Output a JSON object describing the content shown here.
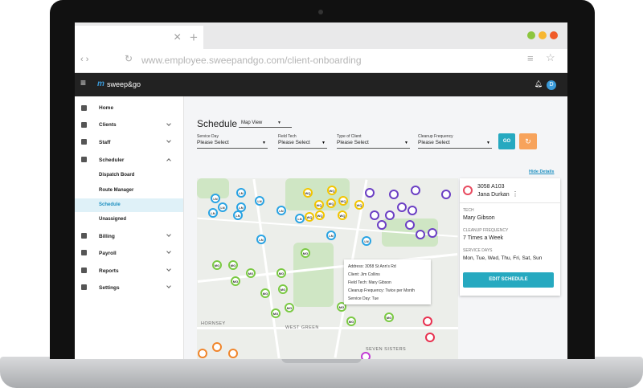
{
  "browser": {
    "url": "www.employee.sweepandgo.com/client-onboarding"
  },
  "app": {
    "logo": "sweep&go",
    "avatar": "D"
  },
  "sidebar": [
    "Home",
    "Clients",
    "Staff",
    "Scheduler",
    "Dispatch Board",
    "Route Manager",
    "Schedule",
    "Unassigned",
    "Billing",
    "Payroll",
    "Reports",
    "Settings"
  ],
  "schedule": {
    "title": "Schedule",
    "view": "Map View"
  },
  "filters": [
    {
      "label": "Service Day",
      "value": "Please Select"
    },
    {
      "label": "Field Tech",
      "value": "Please Select"
    },
    {
      "label": "Type of Client",
      "value": "Please Select"
    },
    {
      "label": "Cleanup Frequency",
      "value": "Please Select"
    }
  ],
  "filters_go": "GO",
  "map": {
    "hide_details": "Hide Details",
    "places": [
      "WEST GREEN",
      "HORNSEY",
      "SEVEN SISTERS"
    ],
    "tooltip": [
      "Address: 3058 St Ann's Rd",
      "Client: Jim Collins",
      "Field Tech: Mary Gibson",
      "Cleanup Frequency: Twice per Month",
      "Service Day: Tue"
    ],
    "markers": [
      {
        "label": "LN",
        "color": "#29a3e3"
      },
      {
        "label": "LN",
        "color": "#29a3e3"
      },
      {
        "label": "LN",
        "color": "#29a3e3"
      },
      {
        "label": "LN",
        "color": "#29a3e3"
      },
      {
        "label": "LN",
        "color": "#29a3e3"
      },
      {
        "label": "LN",
        "color": "#29a3e3"
      },
      {
        "label": "LN",
        "color": "#29a3e3"
      },
      {
        "label": "LN",
        "color": "#29a3e3"
      },
      {
        "label": "LN",
        "color": "#29a3e3"
      },
      {
        "label": "LN",
        "color": "#29a3e3"
      },
      {
        "label": "LN",
        "color": "#29a3e3"
      },
      {
        "label": "LN",
        "color": "#29a3e3"
      },
      {
        "label": "WQ",
        "color": "#f2c500"
      },
      {
        "label": "WQ",
        "color": "#f2c500"
      },
      {
        "label": "WQ",
        "color": "#f2c500"
      },
      {
        "label": "WQ",
        "color": "#f2c500"
      },
      {
        "label": "WQ",
        "color": "#f2c500"
      },
      {
        "label": "WQ",
        "color": "#f2c500"
      },
      {
        "label": "WQ",
        "color": "#f2c500"
      },
      {
        "label": "WQ",
        "color": "#f2c500"
      },
      {
        "label": "WQ",
        "color": "#f2c500"
      },
      {
        "label": "MG",
        "color": "#7ac943"
      },
      {
        "label": "MG",
        "color": "#7ac943"
      },
      {
        "label": "MG",
        "color": "#7ac943"
      },
      {
        "label": "MG",
        "color": "#7ac943"
      },
      {
        "label": "MG",
        "color": "#7ac943"
      },
      {
        "label": "MG",
        "color": "#7ac943"
      },
      {
        "label": "MG",
        "color": "#7ac943"
      },
      {
        "label": "MG",
        "color": "#7ac943"
      },
      {
        "label": "MG",
        "color": "#7ac943"
      },
      {
        "label": "MG",
        "color": "#7ac943"
      },
      {
        "label": "MG",
        "color": "#7ac943"
      },
      {
        "label": "MG",
        "color": "#7ac943"
      },
      {
        "label": "MG",
        "color": "#7ac943"
      },
      {
        "label": "MG",
        "color": "#7ac943"
      },
      {
        "color": "#6b3fc4"
      },
      {
        "color": "#6b3fc4"
      },
      {
        "color": "#6b3fc4"
      },
      {
        "color": "#6b3fc4"
      },
      {
        "color": "#6b3fc4"
      },
      {
        "color": "#6b3fc4"
      },
      {
        "color": "#6b3fc4"
      },
      {
        "color": "#6b3fc4"
      },
      {
        "color": "#6b3fc4"
      },
      {
        "color": "#6b3fc4"
      },
      {
        "color": "#6b3fc4"
      },
      {
        "color": "#6b3fc4"
      },
      {
        "color": "#f0862c"
      },
      {
        "color": "#f0862c"
      },
      {
        "color": "#f0862c"
      },
      {
        "color": "#e8304f"
      },
      {
        "color": "#e8304f"
      },
      {
        "color": "#c23bd4"
      }
    ]
  },
  "details": {
    "code": "3058 A103",
    "client": "Jana Durkan",
    "fields": [
      {
        "label": "TECH",
        "value": "Mary Gibson"
      },
      {
        "label": "CLEANUP FREQUENCY",
        "value": "7 Times a Week"
      },
      {
        "label": "SERVICE DAYS",
        "value": "Mon, Tue, Wed, Thu, Fri, Sat, Sun"
      }
    ],
    "button": "EDIT SCHEDULE"
  }
}
